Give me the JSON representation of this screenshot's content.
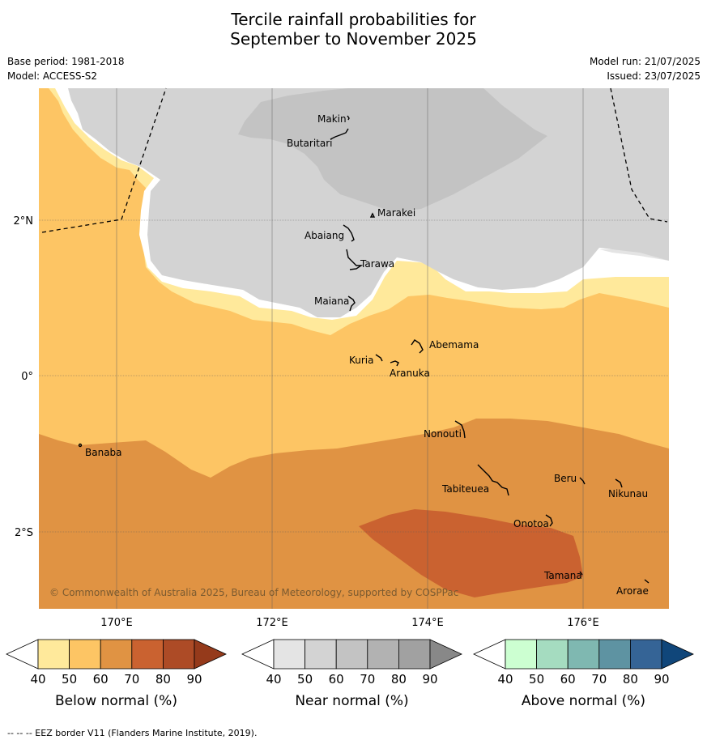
{
  "title": {
    "line1": "Tercile rainfall probabilities for",
    "line2": "September to November 2025"
  },
  "meta": {
    "base_period": "Base period: 1981-2018",
    "model": "Model: ACCESS-S2",
    "model_run": "Model run: 21/07/2025",
    "issued": "Issued: 23/07/2025"
  },
  "map": {
    "lon_ticks": [
      "170°E",
      "172°E",
      "174°E",
      "176°E"
    ],
    "lat_ticks": [
      "2°N",
      "0°",
      "2°S"
    ],
    "places": {
      "makin": "Makin",
      "butaritari": "Butaritari",
      "marakei": "Marakei",
      "abaiang": "Abaiang",
      "tarawa": "Tarawa",
      "maiana": "Maiana",
      "abemama": "Abemama",
      "kuria": "Kuria",
      "aranuka": "Aranuka",
      "nonouti": "Nonouti",
      "banaba": "Banaba",
      "beru": "Beru",
      "nikunau": "Nikunau",
      "tabiteuea": "Tabiteuea",
      "onotoa": "Onotoa",
      "tamana": "Tamana",
      "arorae": "Arorae"
    },
    "copyright": "© Commonwealth of Australia 2025, Bureau of Meteorology, supported by COSPPac"
  },
  "legends": [
    {
      "label": "Below normal (%)",
      "ticks": [
        "40",
        "50",
        "60",
        "70",
        "80",
        "90"
      ],
      "colors": [
        "#ffffff",
        "#ffe99b",
        "#fdc564",
        "#e09343",
        "#ca6230",
        "#ad4b26",
        "#953a1b"
      ]
    },
    {
      "label": "Near normal (%)",
      "ticks": [
        "40",
        "50",
        "60",
        "70",
        "80",
        "90"
      ],
      "colors": [
        "#ffffff",
        "#e4e4e4",
        "#d3d3d3",
        "#c3c3c3",
        "#b2b2b2",
        "#a1a1a1",
        "#888888"
      ]
    },
    {
      "label": "Above normal (%)",
      "ticks": [
        "40",
        "50",
        "60",
        "70",
        "80",
        "90"
      ],
      "colors": [
        "#ffffff",
        "#ccffd1",
        "#a5dcc0",
        "#7fb8b1",
        "#5e93a2",
        "#356496",
        "#10467a"
      ]
    }
  ],
  "footer": "--  --  -- EEZ border V11 (Flanders Marine Institute, 2019)."
}
